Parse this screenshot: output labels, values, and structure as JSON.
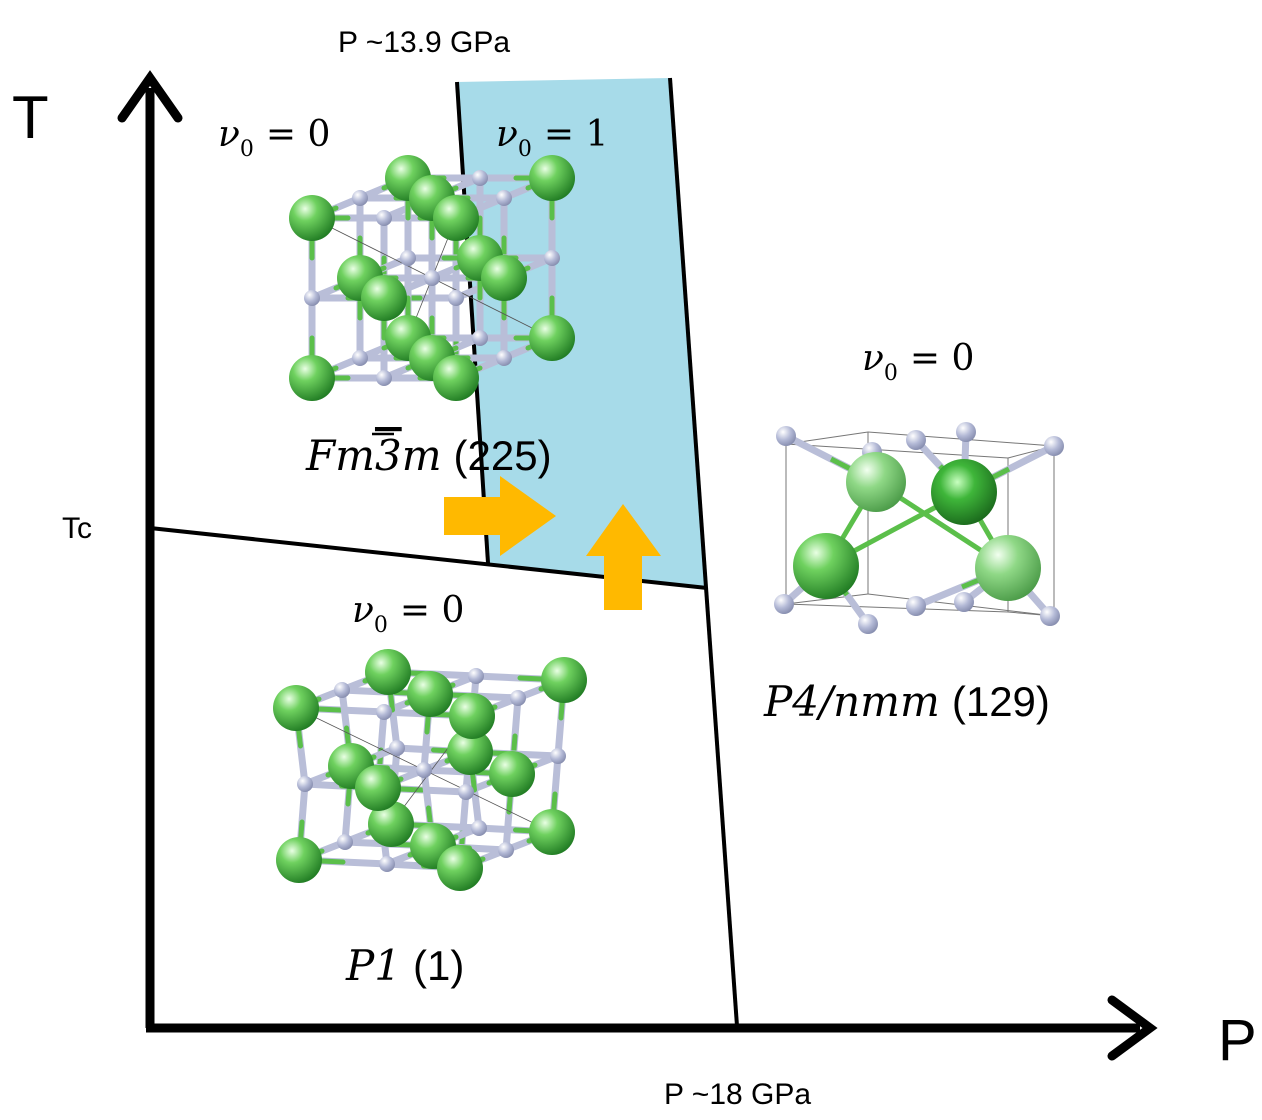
{
  "axes": {
    "y_label": "T",
    "x_label": "P",
    "tc_label": "Tc",
    "pressure_top_label": "P ~13.9 GPa",
    "pressure_bottom_label": "P ~18 GPa"
  },
  "phases": {
    "fm3m": {
      "nu_symbol": "ν",
      "nu_sub": "0",
      "nu_value": "= 0",
      "group_base": "Fm",
      "group_bar": "3",
      "group_tail": "m",
      "group_number": "(225)"
    },
    "topological": {
      "nu_symbol": "ν",
      "nu_sub": "0",
      "nu_value": "= 1"
    },
    "p1": {
      "nu_symbol": "ν",
      "nu_sub": "0",
      "nu_value": "= 0",
      "group": "P1",
      "group_number": "(1)"
    },
    "p4nmm": {
      "nu_symbol": "ν",
      "nu_sub": "0",
      "nu_value": "= 0",
      "group": "P4/nmm",
      "group_number": "(129)"
    }
  },
  "colors": {
    "region_fill": "#a7dbe9",
    "arrow_fill": "#ffb900",
    "line": "#000000",
    "atom_large": "#3fae3f",
    "atom_small": "#aab2d0",
    "bond": "#5bbf4a"
  },
  "icons": {
    "arrow_right": "arrow-right-icon",
    "arrow_up": "arrow-up-icon"
  }
}
